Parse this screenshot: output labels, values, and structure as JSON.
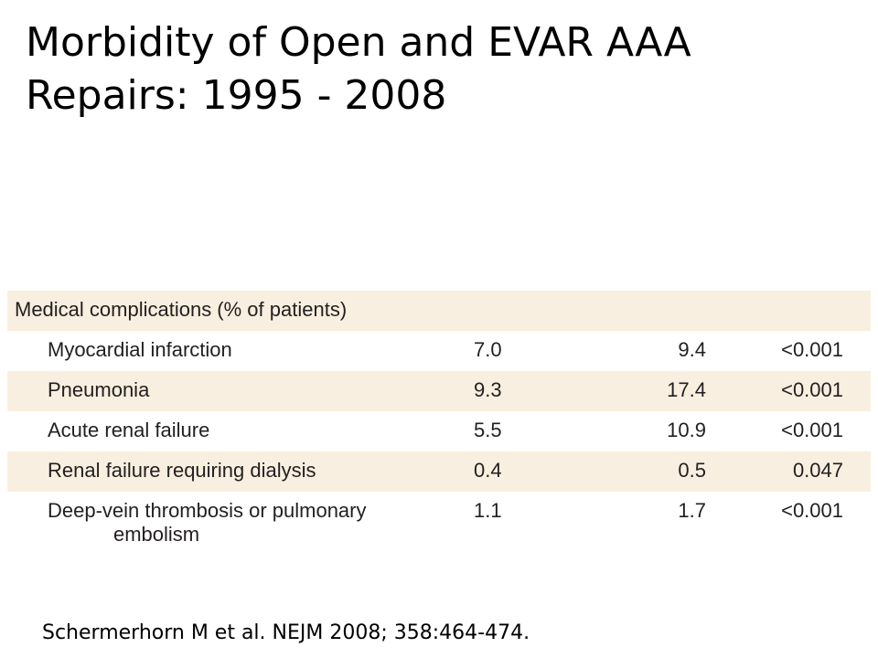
{
  "title": {
    "line1": "Morbidity of Open and EVAR AAA",
    "line2": "Repairs: 1995 - 2008"
  },
  "table": {
    "header": "Medical complications (% of patients)",
    "rows": [
      {
        "label": "Myocardial infarction",
        "col1": "7.0",
        "col2": "9.4",
        "p": "<0.001"
      },
      {
        "label": "Pneumonia",
        "col1": "9.3",
        "col2": "17.4",
        "p": "<0.001"
      },
      {
        "label": "Acute renal failure",
        "col1": "5.5",
        "col2": "10.9",
        "p": "<0.001"
      },
      {
        "label": "Renal failure requiring dialysis",
        "col1": "0.4",
        "col2": "0.5",
        "p": "0.047"
      },
      {
        "label_line1": "Deep-vein thrombosis or pulmonary",
        "label_line2": "embolism",
        "col1": "1.1",
        "col2": "1.7",
        "p": "<0.001"
      }
    ]
  },
  "citation": "Schermerhorn M et al. NEJM 2008; 358:464-474.",
  "colors": {
    "row_shade": "#f9efe0",
    "table_text": "#231f20"
  }
}
